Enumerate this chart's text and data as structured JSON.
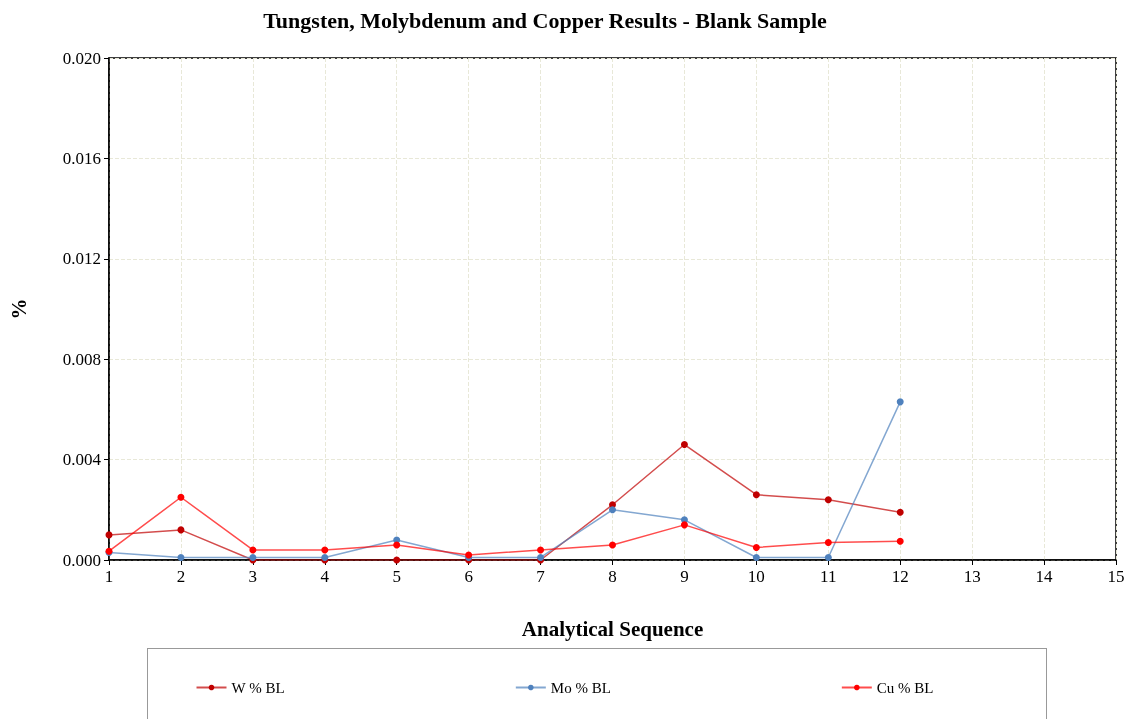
{
  "chart_data": {
    "type": "line",
    "title": "Tungsten, Molybdenum and Copper Results - Blank Sample",
    "xlabel": "Analytical Sequence",
    "ylabel": "%",
    "x": [
      1,
      2,
      3,
      4,
      5,
      6,
      7,
      8,
      9,
      10,
      11,
      12
    ],
    "series": [
      {
        "name": "W % BL",
        "color": "#c00000",
        "values": [
          0.001,
          0.0012,
          0,
          0,
          0,
          0,
          0,
          0.0022,
          0.0046,
          0.0026,
          0.0024,
          0.0019
        ]
      },
      {
        "name": "Mo % BL",
        "color": "#4f81bd",
        "values": [
          0.0003,
          0.0001,
          0.0001,
          0.0001,
          0.0008,
          0.0001,
          0.0001,
          0.002,
          0.0016,
          0.0001,
          0.0001,
          0.0063
        ]
      },
      {
        "name": "Cu % BL",
        "color": "#ff0000",
        "values": [
          0.00035,
          0.0025,
          0.0004,
          0.0004,
          0.0006,
          0.0002,
          0.0004,
          0.0006,
          0.0014,
          0.0005,
          0.0007,
          0.00075
        ]
      }
    ],
    "xlim": [
      1,
      15
    ],
    "xticks": [
      1,
      2,
      3,
      4,
      5,
      6,
      7,
      8,
      9,
      10,
      11,
      12,
      13,
      14,
      15
    ],
    "ylim": [
      0,
      0.02
    ],
    "yticks": [
      {
        "value": 0,
        "label": "0.000"
      },
      {
        "value": 0.004,
        "label": "0.004"
      },
      {
        "value": 0.008,
        "label": "0.008"
      },
      {
        "value": 0.012,
        "label": "0.012"
      },
      {
        "value": 0.016,
        "label": "0.016"
      },
      {
        "value": 0.02,
        "label": "0.020"
      }
    ],
    "grid": true,
    "legend": "bottom",
    "marker": "circle",
    "line_style": "solid"
  }
}
